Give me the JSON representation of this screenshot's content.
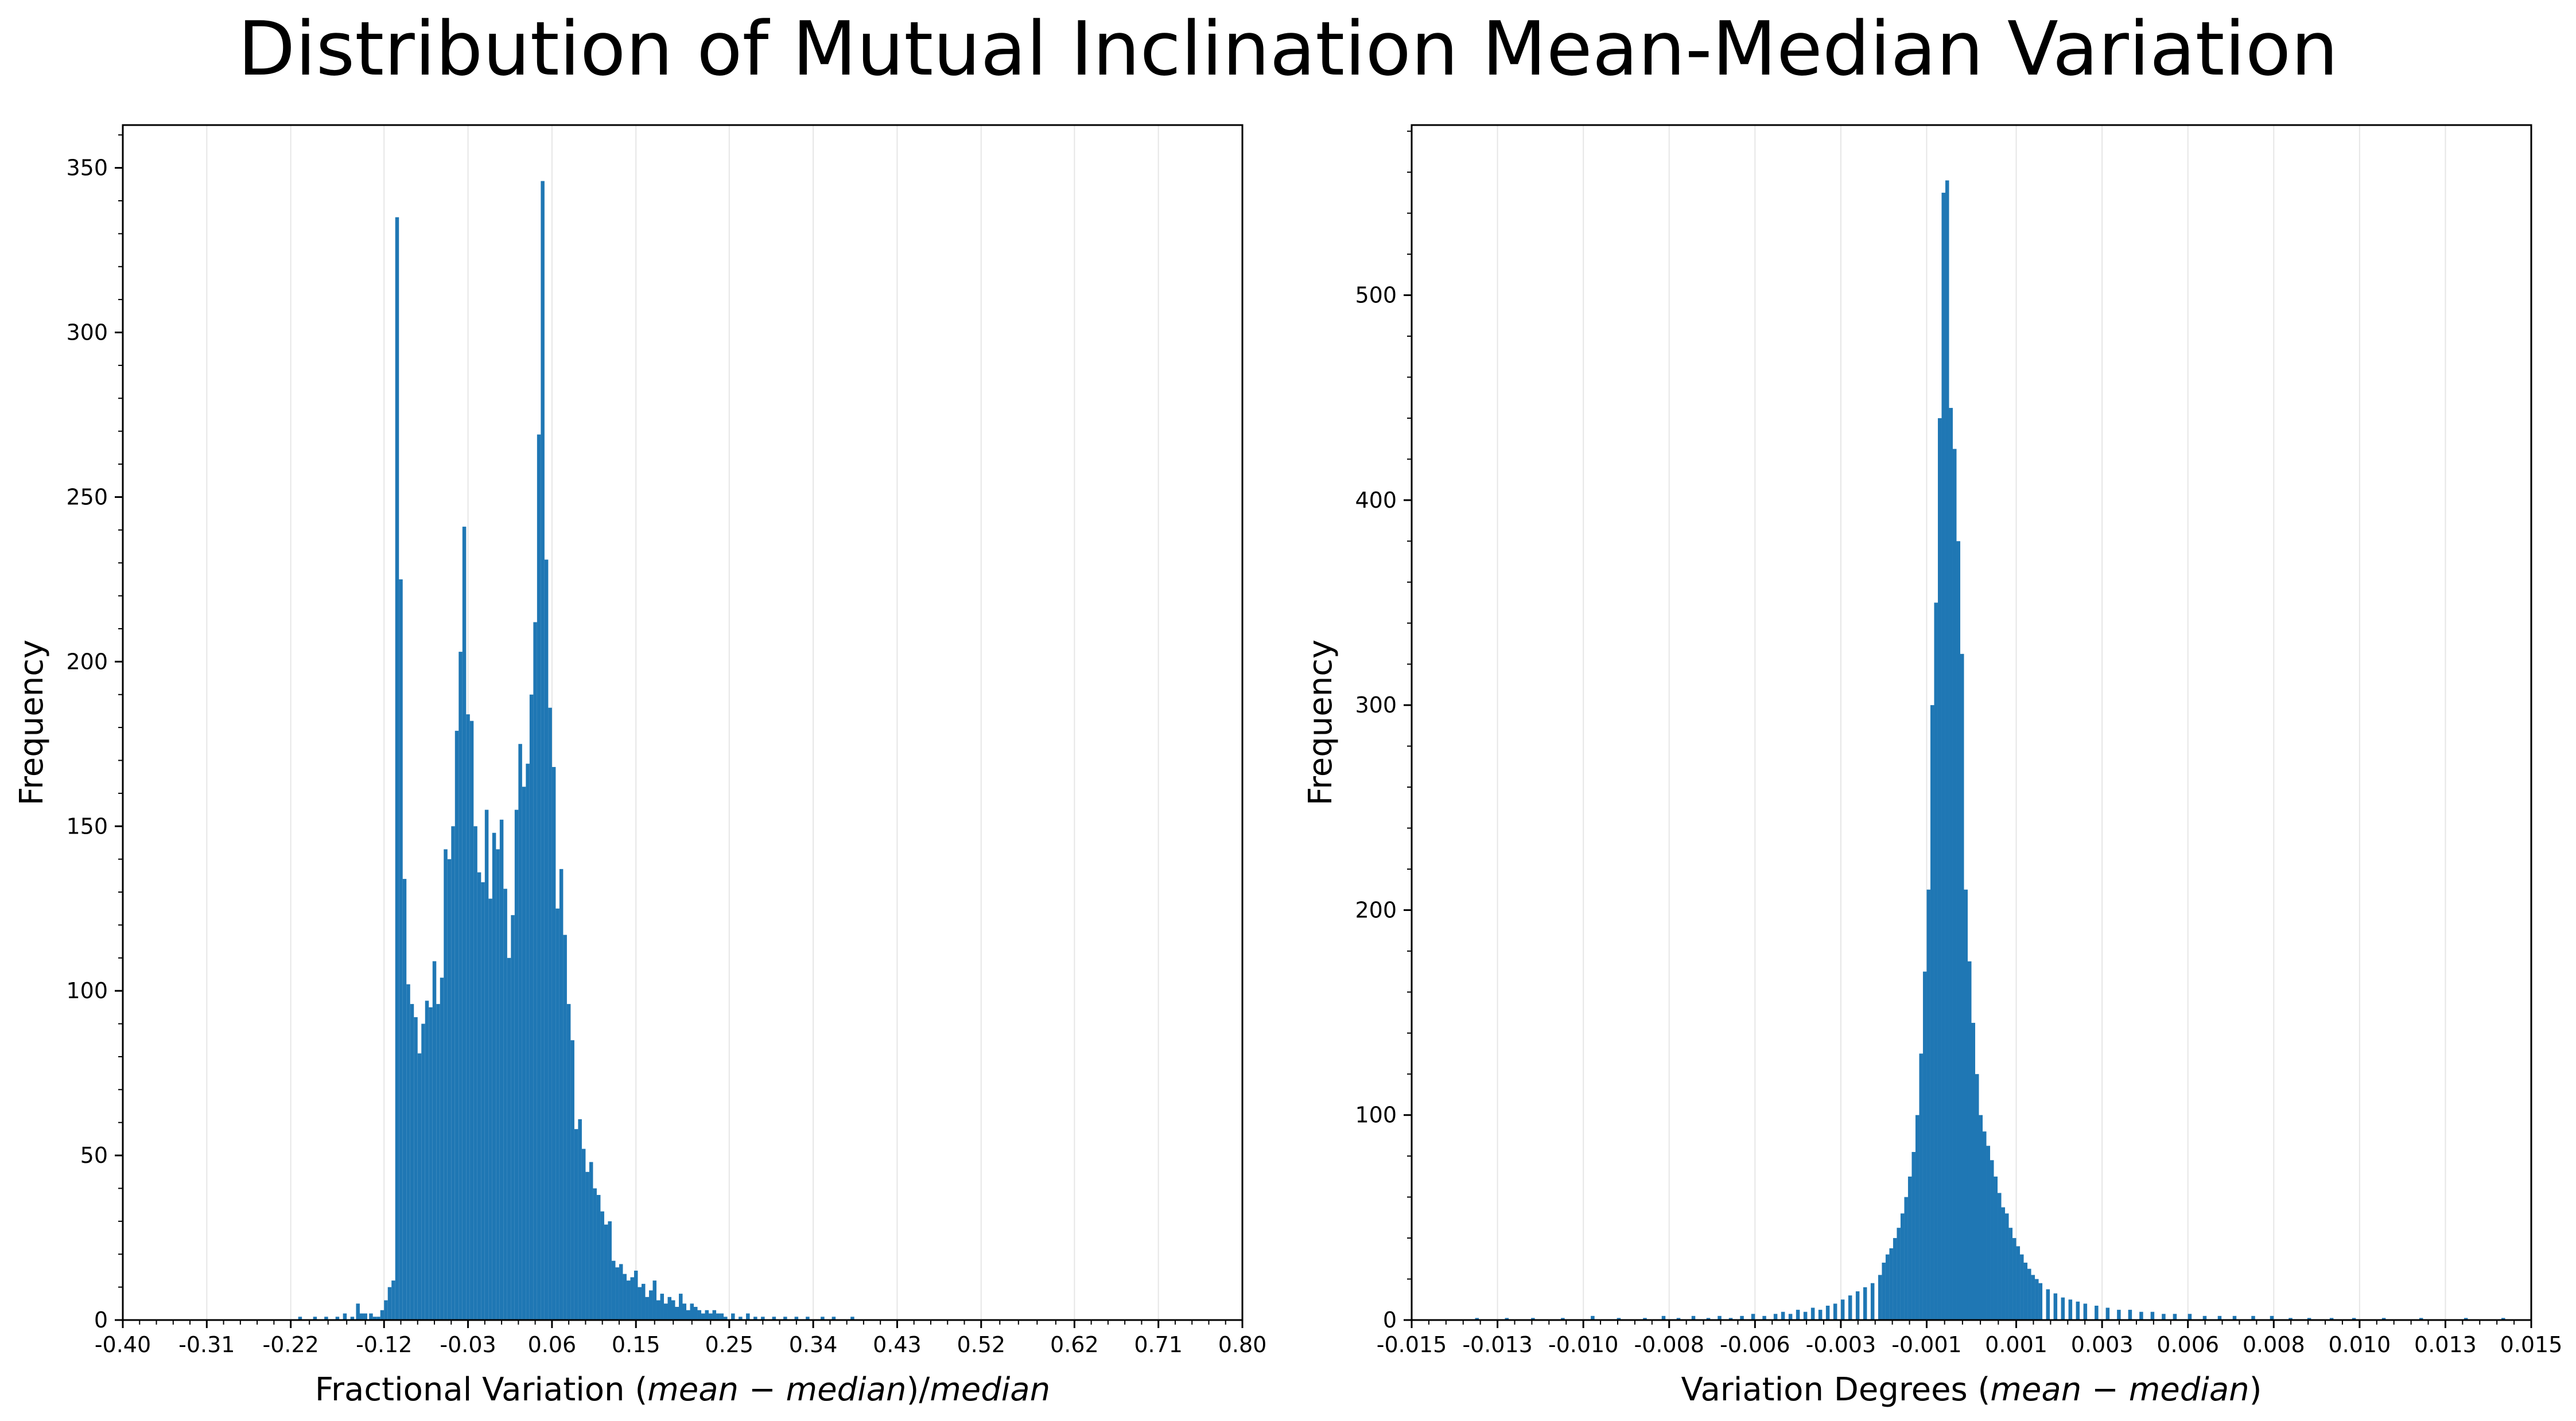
{
  "figure": {
    "title": "Distribution of Mutual Inclination Mean-Median Variation"
  },
  "chart_data": [
    {
      "type": "bar",
      "xlabel": "Fractional Variation (mean − median)/median",
      "xlabel_parts": {
        "prefix": "Fractional Variation (",
        "math": "mean − median",
        "suffix": ")/",
        "math2": "median"
      },
      "ylabel": "Frequency",
      "xlim": [
        -0.4,
        0.8
      ],
      "ylim": [
        0,
        363
      ],
      "xticks": [
        -0.4,
        -0.31,
        -0.22,
        -0.12,
        -0.03,
        0.06,
        0.15,
        0.25,
        0.34,
        0.43,
        0.52,
        0.62,
        0.71,
        0.8
      ],
      "xtick_labels": [
        "-0.40",
        "-0.31",
        "-0.22",
        "-0.12",
        "-0.03",
        "0.06",
        "0.15",
        "0.25",
        "0.34",
        "0.43",
        "0.52",
        "0.62",
        "0.71",
        "0.80"
      ],
      "yticks": [
        0,
        50,
        100,
        150,
        200,
        250,
        300,
        350
      ],
      "ytick_labels": [
        "0",
        "50",
        "100",
        "150",
        "200",
        "250",
        "300",
        "350"
      ],
      "grid": "vertical",
      "color": "#1f77b4",
      "bin_width": 0.004,
      "bins": [
        [
          -0.212,
          1
        ],
        [
          -0.196,
          1
        ],
        [
          -0.184,
          1
        ],
        [
          -0.172,
          1
        ],
        [
          -0.164,
          2
        ],
        [
          -0.156,
          1
        ],
        [
          -0.15,
          5
        ],
        [
          -0.146,
          2
        ],
        [
          -0.142,
          2
        ],
        [
          -0.136,
          2
        ],
        [
          -0.132,
          1
        ],
        [
          -0.128,
          1
        ],
        [
          -0.124,
          3
        ],
        [
          -0.12,
          6
        ],
        [
          -0.116,
          10
        ],
        [
          -0.112,
          12
        ],
        [
          -0.108,
          335
        ],
        [
          -0.104,
          225
        ],
        [
          -0.1,
          134
        ],
        [
          -0.096,
          102
        ],
        [
          -0.092,
          96
        ],
        [
          -0.088,
          92
        ],
        [
          -0.084,
          81
        ],
        [
          -0.08,
          90
        ],
        [
          -0.076,
          97
        ],
        [
          -0.072,
          95
        ],
        [
          -0.068,
          109
        ],
        [
          -0.064,
          96
        ],
        [
          -0.06,
          104
        ],
        [
          -0.056,
          143
        ],
        [
          -0.052,
          140
        ],
        [
          -0.048,
          150
        ],
        [
          -0.044,
          179
        ],
        [
          -0.04,
          203
        ],
        [
          -0.036,
          241
        ],
        [
          -0.032,
          184
        ],
        [
          -0.028,
          182
        ],
        [
          -0.024,
          150
        ],
        [
          -0.02,
          136
        ],
        [
          -0.016,
          133
        ],
        [
          -0.012,
          155
        ],
        [
          -0.008,
          128
        ],
        [
          -0.004,
          148
        ],
        [
          0.0,
          143
        ],
        [
          0.004,
          152
        ],
        [
          0.008,
          131
        ],
        [
          0.012,
          110
        ],
        [
          0.016,
          123
        ],
        [
          0.02,
          155
        ],
        [
          0.024,
          175
        ],
        [
          0.028,
          162
        ],
        [
          0.032,
          169
        ],
        [
          0.036,
          190
        ],
        [
          0.04,
          212
        ],
        [
          0.044,
          269
        ],
        [
          0.048,
          346
        ],
        [
          0.052,
          231
        ],
        [
          0.056,
          186
        ],
        [
          0.06,
          168
        ],
        [
          0.064,
          125
        ],
        [
          0.068,
          137
        ],
        [
          0.072,
          117
        ],
        [
          0.076,
          96
        ],
        [
          0.08,
          85
        ],
        [
          0.084,
          58
        ],
        [
          0.088,
          61
        ],
        [
          0.092,
          52
        ],
        [
          0.096,
          45
        ],
        [
          0.1,
          48
        ],
        [
          0.104,
          40
        ],
        [
          0.108,
          38
        ],
        [
          0.112,
          33
        ],
        [
          0.116,
          29
        ],
        [
          0.12,
          30
        ],
        [
          0.124,
          18
        ],
        [
          0.128,
          16
        ],
        [
          0.132,
          17
        ],
        [
          0.136,
          14
        ],
        [
          0.14,
          12
        ],
        [
          0.144,
          13
        ],
        [
          0.148,
          15
        ],
        [
          0.152,
          10
        ],
        [
          0.156,
          11
        ],
        [
          0.16,
          7
        ],
        [
          0.164,
          9
        ],
        [
          0.168,
          12
        ],
        [
          0.172,
          6
        ],
        [
          0.176,
          8
        ],
        [
          0.18,
          5
        ],
        [
          0.184,
          7
        ],
        [
          0.188,
          6
        ],
        [
          0.192,
          4
        ],
        [
          0.196,
          8
        ],
        [
          0.2,
          5
        ],
        [
          0.204,
          3
        ],
        [
          0.208,
          5
        ],
        [
          0.212,
          4
        ],
        [
          0.216,
          3
        ],
        [
          0.22,
          2
        ],
        [
          0.224,
          3
        ],
        [
          0.228,
          2
        ],
        [
          0.232,
          3
        ],
        [
          0.236,
          2
        ],
        [
          0.24,
          2
        ],
        [
          0.244,
          1
        ],
        [
          0.252,
          2
        ],
        [
          0.26,
          1
        ],
        [
          0.268,
          2
        ],
        [
          0.276,
          1
        ],
        [
          0.284,
          1
        ],
        [
          0.296,
          1
        ],
        [
          0.308,
          1
        ],
        [
          0.32,
          1
        ],
        [
          0.332,
          1
        ],
        [
          0.348,
          1
        ],
        [
          0.36,
          1
        ],
        [
          0.38,
          1
        ]
      ]
    },
    {
      "type": "bar",
      "xlabel": "Variation Degrees (mean − median)",
      "xlabel_parts": {
        "prefix": "Variation Degrees (",
        "math": "mean − median",
        "suffix": ")",
        "math2": ""
      },
      "ylabel": "Frequency",
      "xlim": [
        -0.015,
        0.015
      ],
      "ylim": [
        0,
        583
      ],
      "xticks": [
        -0.015,
        -0.0127,
        -0.0104,
        -0.0081,
        -0.0058,
        -0.0035,
        -0.0012,
        0.0012,
        0.0035,
        0.0058,
        0.0081,
        0.0104,
        0.0127,
        0.015
      ],
      "xtick_labels": [
        "-0.015",
        "-0.013",
        "-0.010",
        "-0.008",
        "-0.006",
        "-0.003",
        "-0.001",
        "0.001",
        "0.003",
        "0.006",
        "0.008",
        "0.010",
        "0.013",
        "0.015"
      ],
      "yticks": [
        0,
        100,
        200,
        300,
        400,
        500
      ],
      "ytick_labels": [
        "0",
        "100",
        "200",
        "300",
        "400",
        "500"
      ],
      "grid": "vertical",
      "color": "#1f77b4",
      "bin_width": 0.0001,
      "bins": [
        [
          -0.0133,
          1
        ],
        [
          -0.0125,
          1
        ],
        [
          -0.0118,
          1
        ],
        [
          -0.011,
          1
        ],
        [
          -0.0102,
          2
        ],
        [
          -0.0095,
          1
        ],
        [
          -0.0088,
          1
        ],
        [
          -0.0083,
          2
        ],
        [
          -0.0079,
          1
        ],
        [
          -0.0075,
          2
        ],
        [
          -0.0071,
          1
        ],
        [
          -0.0068,
          2
        ],
        [
          -0.0065,
          1
        ],
        [
          -0.0062,
          2
        ],
        [
          -0.0059,
          3
        ],
        [
          -0.0056,
          2
        ],
        [
          -0.0053,
          3
        ],
        [
          -0.0051,
          4
        ],
        [
          -0.0049,
          3
        ],
        [
          -0.0047,
          5
        ],
        [
          -0.0045,
          4
        ],
        [
          -0.0043,
          6
        ],
        [
          -0.0041,
          5
        ],
        [
          -0.0039,
          7
        ],
        [
          -0.0037,
          8
        ],
        [
          -0.0035,
          10
        ],
        [
          -0.0033,
          12
        ],
        [
          -0.0031,
          14
        ],
        [
          -0.0029,
          16
        ],
        [
          -0.0027,
          18
        ],
        [
          -0.0025,
          22
        ],
        [
          -0.0024,
          28
        ],
        [
          -0.0023,
          32
        ],
        [
          -0.0022,
          35
        ],
        [
          -0.0021,
          40
        ],
        [
          -0.002,
          45
        ],
        [
          -0.0019,
          52
        ],
        [
          -0.0018,
          60
        ],
        [
          -0.0017,
          70
        ],
        [
          -0.0016,
          82
        ],
        [
          -0.0015,
          100
        ],
        [
          -0.0014,
          130
        ],
        [
          -0.0013,
          170
        ],
        [
          -0.0012,
          210
        ],
        [
          -0.0011,
          300
        ],
        [
          -0.001,
          350
        ],
        [
          -0.0009,
          440
        ],
        [
          -0.0008,
          550
        ],
        [
          -0.0007,
          556
        ],
        [
          -0.0006,
          445
        ],
        [
          -0.0005,
          425
        ],
        [
          -0.0004,
          380
        ],
        [
          -0.0003,
          325
        ],
        [
          -0.0002,
          210
        ],
        [
          -0.0001,
          175
        ],
        [
          0.0,
          145
        ],
        [
          0.0001,
          120
        ],
        [
          0.0002,
          100
        ],
        [
          0.0003,
          92
        ],
        [
          0.0004,
          85
        ],
        [
          0.0005,
          78
        ],
        [
          0.0006,
          70
        ],
        [
          0.0007,
          62
        ],
        [
          0.0008,
          55
        ],
        [
          0.0009,
          52
        ],
        [
          0.001,
          45
        ],
        [
          0.0011,
          40
        ],
        [
          0.0012,
          36
        ],
        [
          0.0013,
          32
        ],
        [
          0.0014,
          28
        ],
        [
          0.0015,
          25
        ],
        [
          0.0016,
          22
        ],
        [
          0.0017,
          20
        ],
        [
          0.0018,
          18
        ],
        [
          0.002,
          15
        ],
        [
          0.0022,
          13
        ],
        [
          0.0024,
          11
        ],
        [
          0.0026,
          10
        ],
        [
          0.0028,
          9
        ],
        [
          0.003,
          8
        ],
        [
          0.0033,
          7
        ],
        [
          0.0036,
          6
        ],
        [
          0.0039,
          5
        ],
        [
          0.0042,
          5
        ],
        [
          0.0045,
          4
        ],
        [
          0.0048,
          4
        ],
        [
          0.0051,
          3
        ],
        [
          0.0054,
          3
        ],
        [
          0.0058,
          3
        ],
        [
          0.0062,
          2
        ],
        [
          0.0066,
          2
        ],
        [
          0.007,
          2
        ],
        [
          0.0075,
          2
        ],
        [
          0.008,
          2
        ],
        [
          0.0085,
          1
        ],
        [
          0.009,
          1
        ],
        [
          0.0096,
          1
        ],
        [
          0.0102,
          1
        ],
        [
          0.011,
          1
        ],
        [
          0.012,
          1
        ],
        [
          0.0132,
          1
        ],
        [
          0.0142,
          1
        ]
      ]
    }
  ]
}
